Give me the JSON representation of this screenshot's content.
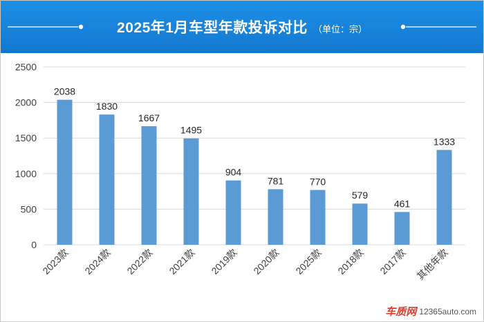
{
  "header": {
    "title": "2025年1月车型年款投诉对比",
    "unit": "（单位：宗）"
  },
  "chart_data": {
    "type": "bar",
    "categories": [
      "2023款",
      "2024款",
      "2022款",
      "2021款",
      "2019款",
      "2020款",
      "2025款",
      "2018款",
      "2017款",
      "其他年款"
    ],
    "values": [
      2038,
      1830,
      1667,
      1495,
      904,
      781,
      770,
      579,
      461,
      1333
    ],
    "ylim": [
      0,
      2500
    ],
    "yticks": [
      0,
      500,
      1000,
      1500,
      2000,
      2500
    ],
    "grid": true,
    "bar_color": "#5b9bd5"
  },
  "watermark": {
    "brand": "车质网",
    "site": "12365auto.com"
  },
  "colors": {
    "header": "#1478d0",
    "gridline": "#d9d9d9",
    "axis_text": "#404040"
  }
}
